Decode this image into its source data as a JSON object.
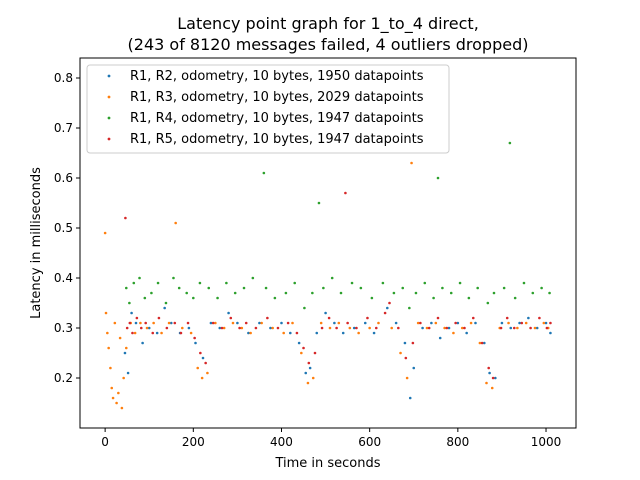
{
  "chart_data": {
    "type": "scatter",
    "title_lines": [
      "Latency point graph for 1_to_4 direct,",
      "(243 of 8120 messages failed, 4 outliers dropped)"
    ],
    "xlabel": "Time in seconds",
    "ylabel": "Latency in milliseconds",
    "xlim": [
      -57,
      1068
    ],
    "ylim": [
      0.1,
      0.84
    ],
    "xticks": [
      0,
      200,
      400,
      600,
      800,
      1000
    ],
    "yticks": [
      0.2,
      0.3,
      0.4,
      0.5,
      0.6,
      0.7,
      0.8
    ],
    "grid": false,
    "legend_position": "upper-left",
    "series": [
      {
        "name": "R1, R2, odometry, 10 bytes, 1950 datapoints",
        "color": "#1f77b4",
        "points": [
          [
            45,
            0.25
          ],
          [
            52,
            0.21
          ],
          [
            60,
            0.33
          ],
          [
            70,
            0.31
          ],
          [
            85,
            0.27
          ],
          [
            100,
            0.3
          ],
          [
            118,
            0.29
          ],
          [
            135,
            0.34
          ],
          [
            150,
            0.31
          ],
          [
            170,
            0.29
          ],
          [
            190,
            0.3
          ],
          [
            205,
            0.27
          ],
          [
            222,
            0.24
          ],
          [
            240,
            0.31
          ],
          [
            260,
            0.3
          ],
          [
            280,
            0.33
          ],
          [
            300,
            0.31
          ],
          [
            325,
            0.29
          ],
          [
            350,
            0.31
          ],
          [
            375,
            0.3
          ],
          [
            400,
            0.31
          ],
          [
            420,
            0.29
          ],
          [
            440,
            0.27
          ],
          [
            455,
            0.21
          ],
          [
            465,
            0.22
          ],
          [
            480,
            0.29
          ],
          [
            500,
            0.33
          ],
          [
            520,
            0.31
          ],
          [
            540,
            0.29
          ],
          [
            565,
            0.3
          ],
          [
            590,
            0.31
          ],
          [
            610,
            0.29
          ],
          [
            640,
            0.34
          ],
          [
            660,
            0.31
          ],
          [
            680,
            0.27
          ],
          [
            692,
            0.16
          ],
          [
            700,
            0.22
          ],
          [
            720,
            0.3
          ],
          [
            740,
            0.31
          ],
          [
            760,
            0.28
          ],
          [
            780,
            0.3
          ],
          [
            800,
            0.31
          ],
          [
            820,
            0.29
          ],
          [
            840,
            0.31
          ],
          [
            860,
            0.27
          ],
          [
            872,
            0.21
          ],
          [
            885,
            0.2
          ],
          [
            900,
            0.31
          ],
          [
            920,
            0.3
          ],
          [
            940,
            0.31
          ],
          [
            960,
            0.32
          ],
          [
            980,
            0.3
          ],
          [
            1000,
            0.31
          ],
          [
            1010,
            0.29
          ]
        ]
      },
      {
        "name": "R1, R3, odometry, 10 bytes, 2029 datapoints",
        "color": "#ff7f0e",
        "points": [
          [
            0,
            0.49
          ],
          [
            2,
            0.33
          ],
          [
            5,
            0.29
          ],
          [
            8,
            0.26
          ],
          [
            12,
            0.22
          ],
          [
            15,
            0.18
          ],
          [
            18,
            0.16
          ],
          [
            22,
            0.31
          ],
          [
            26,
            0.15
          ],
          [
            30,
            0.17
          ],
          [
            34,
            0.28
          ],
          [
            38,
            0.14
          ],
          [
            42,
            0.2
          ],
          [
            48,
            0.26
          ],
          [
            58,
            0.31
          ],
          [
            68,
            0.29
          ],
          [
            80,
            0.31
          ],
          [
            95,
            0.3
          ],
          [
            110,
            0.31
          ],
          [
            128,
            0.29
          ],
          [
            145,
            0.31
          ],
          [
            160,
            0.51
          ],
          [
            175,
            0.3
          ],
          [
            195,
            0.29
          ],
          [
            210,
            0.22
          ],
          [
            220,
            0.2
          ],
          [
            232,
            0.21
          ],
          [
            250,
            0.31
          ],
          [
            270,
            0.3
          ],
          [
            290,
            0.31
          ],
          [
            310,
            0.3
          ],
          [
            330,
            0.29
          ],
          [
            355,
            0.31
          ],
          [
            380,
            0.3
          ],
          [
            405,
            0.29
          ],
          [
            425,
            0.31
          ],
          [
            445,
            0.25
          ],
          [
            460,
            0.19
          ],
          [
            472,
            0.2
          ],
          [
            490,
            0.31
          ],
          [
            510,
            0.3
          ],
          [
            530,
            0.31
          ],
          [
            555,
            0.3
          ],
          [
            575,
            0.29
          ],
          [
            600,
            0.3
          ],
          [
            620,
            0.31
          ],
          [
            650,
            0.3
          ],
          [
            670,
            0.25
          ],
          [
            685,
            0.2
          ],
          [
            695,
            0.63
          ],
          [
            710,
            0.31
          ],
          [
            730,
            0.3
          ],
          [
            750,
            0.31
          ],
          [
            770,
            0.3
          ],
          [
            790,
            0.29
          ],
          [
            810,
            0.3
          ],
          [
            830,
            0.31
          ],
          [
            850,
            0.27
          ],
          [
            865,
            0.19
          ],
          [
            878,
            0.18
          ],
          [
            895,
            0.3
          ],
          [
            915,
            0.31
          ],
          [
            935,
            0.3
          ],
          [
            955,
            0.31
          ],
          [
            975,
            0.3
          ],
          [
            995,
            0.31
          ],
          [
            1005,
            0.3
          ]
        ]
      },
      {
        "name": "R1, R4, odometry, 10 bytes, 1947 datapoints",
        "color": "#2ca02c",
        "points": [
          [
            48,
            0.38
          ],
          [
            55,
            0.35
          ],
          [
            65,
            0.39
          ],
          [
            78,
            0.4
          ],
          [
            90,
            0.36
          ],
          [
            105,
            0.37
          ],
          [
            120,
            0.39
          ],
          [
            138,
            0.35
          ],
          [
            155,
            0.4
          ],
          [
            168,
            0.38
          ],
          [
            185,
            0.37
          ],
          [
            200,
            0.36
          ],
          [
            215,
            0.39
          ],
          [
            235,
            0.38
          ],
          [
            255,
            0.36
          ],
          [
            275,
            0.39
          ],
          [
            295,
            0.37
          ],
          [
            315,
            0.38
          ],
          [
            335,
            0.4
          ],
          [
            360,
            0.61
          ],
          [
            365,
            0.38
          ],
          [
            385,
            0.36
          ],
          [
            410,
            0.37
          ],
          [
            430,
            0.39
          ],
          [
            452,
            0.34
          ],
          [
            470,
            0.37
          ],
          [
            485,
            0.55
          ],
          [
            495,
            0.38
          ],
          [
            515,
            0.4
          ],
          [
            535,
            0.37
          ],
          [
            560,
            0.39
          ],
          [
            580,
            0.38
          ],
          [
            605,
            0.36
          ],
          [
            630,
            0.39
          ],
          [
            655,
            0.37
          ],
          [
            675,
            0.38
          ],
          [
            690,
            0.34
          ],
          [
            705,
            0.37
          ],
          [
            725,
            0.39
          ],
          [
            745,
            0.36
          ],
          [
            755,
            0.6
          ],
          [
            765,
            0.38
          ],
          [
            785,
            0.37
          ],
          [
            805,
            0.39
          ],
          [
            825,
            0.36
          ],
          [
            845,
            0.38
          ],
          [
            868,
            0.35
          ],
          [
            882,
            0.37
          ],
          [
            905,
            0.38
          ],
          [
            918,
            0.67
          ],
          [
            930,
            0.36
          ],
          [
            950,
            0.39
          ],
          [
            970,
            0.37
          ],
          [
            990,
            0.38
          ],
          [
            1008,
            0.37
          ]
        ]
      },
      {
        "name": "R1, R5, odometry, 10 bytes, 1947 datapoints",
        "color": "#d62728",
        "points": [
          [
            46,
            0.52
          ],
          [
            50,
            0.3
          ],
          [
            56,
            0.31
          ],
          [
            62,
            0.29
          ],
          [
            72,
            0.32
          ],
          [
            82,
            0.3
          ],
          [
            92,
            0.31
          ],
          [
            108,
            0.29
          ],
          [
            122,
            0.32
          ],
          [
            140,
            0.3
          ],
          [
            158,
            0.31
          ],
          [
            172,
            0.29
          ],
          [
            188,
            0.31
          ],
          [
            203,
            0.28
          ],
          [
            216,
            0.25
          ],
          [
            228,
            0.23
          ],
          [
            245,
            0.31
          ],
          [
            265,
            0.3
          ],
          [
            285,
            0.32
          ],
          [
            305,
            0.3
          ],
          [
            320,
            0.31
          ],
          [
            342,
            0.3
          ],
          [
            368,
            0.32
          ],
          [
            392,
            0.3
          ],
          [
            415,
            0.31
          ],
          [
            435,
            0.29
          ],
          [
            450,
            0.26
          ],
          [
            462,
            0.23
          ],
          [
            476,
            0.25
          ],
          [
            492,
            0.3
          ],
          [
            508,
            0.32
          ],
          [
            525,
            0.3
          ],
          [
            545,
            0.57
          ],
          [
            550,
            0.31
          ],
          [
            570,
            0.3
          ],
          [
            595,
            0.32
          ],
          [
            615,
            0.3
          ],
          [
            635,
            0.33
          ],
          [
            645,
            0.35
          ],
          [
            665,
            0.3
          ],
          [
            682,
            0.24
          ],
          [
            698,
            0.27
          ],
          [
            715,
            0.31
          ],
          [
            735,
            0.3
          ],
          [
            755,
            0.32
          ],
          [
            775,
            0.3
          ],
          [
            795,
            0.31
          ],
          [
            815,
            0.3
          ],
          [
            835,
            0.32
          ],
          [
            855,
            0.27
          ],
          [
            870,
            0.22
          ],
          [
            880,
            0.2
          ],
          [
            898,
            0.3
          ],
          [
            912,
            0.32
          ],
          [
            928,
            0.3
          ],
          [
            945,
            0.31
          ],
          [
            965,
            0.3
          ],
          [
            985,
            0.32
          ],
          [
            1002,
            0.3
          ],
          [
            1010,
            0.31
          ]
        ]
      }
    ]
  }
}
